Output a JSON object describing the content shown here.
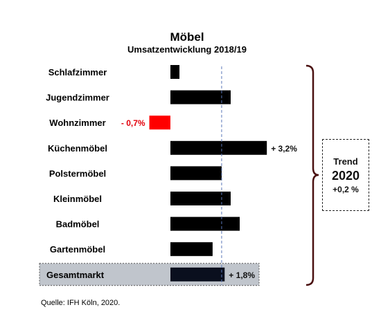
{
  "chart_data": {
    "type": "bar",
    "orientation": "horizontal",
    "title": "Möbel",
    "subtitle": "Umsatzentwicklung 2018/19",
    "categories": [
      "Schlafzimmer",
      "Jugendzimmer",
      "Wohnzimmer",
      "Küchenmöbel",
      "Polstermöbel",
      "Kleinmöbel",
      "Badmöbel",
      "Gartenmöbel",
      "Gesamtmarkt"
    ],
    "values": [
      0.3,
      2.0,
      -0.7,
      3.2,
      1.7,
      2.0,
      2.3,
      1.4,
      1.8
    ],
    "value_labels": {
      "Wohnzimmer": "- 0,7%",
      "Küchenmöbel": "+ 3,2%",
      "Gesamtmarkt": "+ 1,8%"
    },
    "reference_line": 1.7,
    "highlight_category": "Gesamtmarkt",
    "colors": {
      "positive": "#000000",
      "negative": "#ff0000",
      "total": "#0a0f1e",
      "highlight_band": "#c0c5cc",
      "reference_line": "#5b78b8",
      "bracket": "#4a1010",
      "negative_label": "#e3000b"
    },
    "grid": false
  },
  "trend": {
    "label": "Trend",
    "year": "2020",
    "value": "+0,2 %"
  },
  "source": "Quelle: IFH Köln, 2020."
}
